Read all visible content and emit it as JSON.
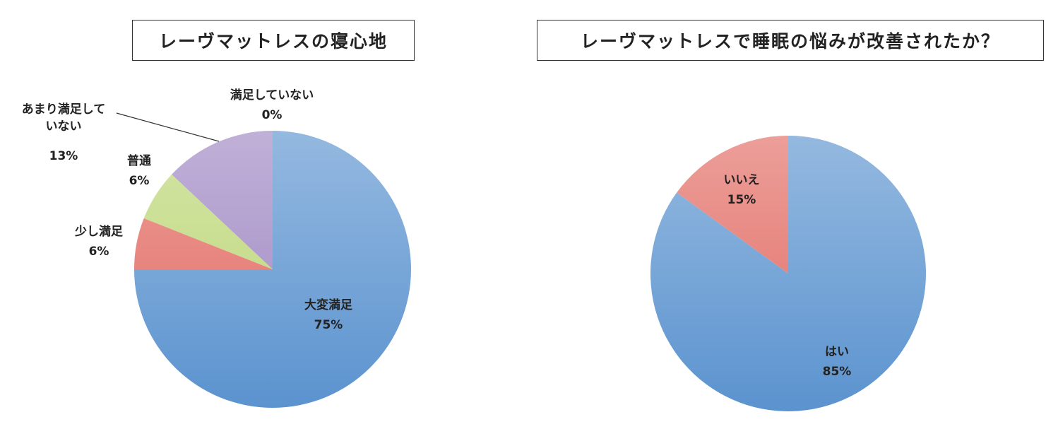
{
  "chart_data": [
    {
      "type": "pie",
      "title": "レーヴマットレスの寝心地",
      "categories": [
        "大変満足",
        "少し満足",
        "普通",
        "あまり満足していない",
        "満足していない"
      ],
      "values": [
        75,
        6,
        6,
        13,
        0
      ],
      "value_labels": [
        "75%",
        "6%",
        "6%",
        "13%",
        "0%"
      ],
      "colors": [
        "#5b93cf",
        "#e26a62",
        "#bcd676",
        "#9e86c2",
        "#9e86c2"
      ]
    },
    {
      "type": "pie",
      "title": "レーヴマットレスで睡眠の悩みが改善されたか？",
      "categories": [
        "はい",
        "いいえ"
      ],
      "values": [
        85,
        15
      ],
      "value_labels": [
        "85%",
        "15%"
      ],
      "colors": [
        "#5b93cf",
        "#e26a62"
      ]
    }
  ]
}
